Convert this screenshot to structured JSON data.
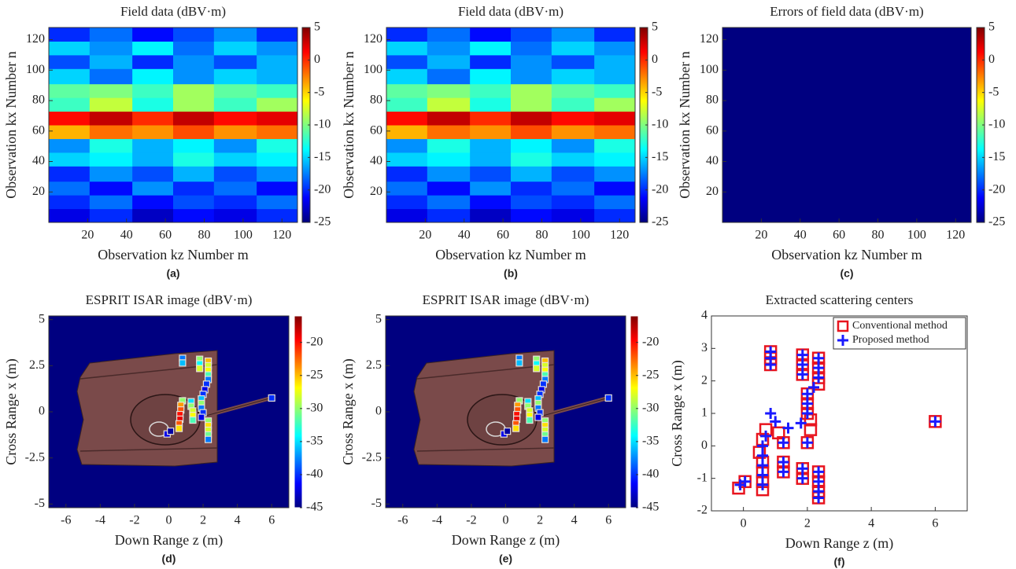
{
  "chart_data": [
    {
      "type": "heatmap",
      "title": "Field data (dBV·m)",
      "xlabel": "Observation kz Number m",
      "ylabel": "Observation kx Number n",
      "label": "(a)",
      "xlim": [
        0,
        128
      ],
      "ylim": [
        0,
        128
      ],
      "xticks": [
        20,
        40,
        60,
        80,
        100,
        120
      ],
      "yticks": [
        20,
        40,
        60,
        80,
        100,
        120
      ],
      "clim": [
        -25,
        5
      ],
      "cticks": [
        5,
        0,
        -5,
        -10,
        -15,
        -20,
        -25
      ],
      "xbins": [
        0,
        21,
        43,
        64,
        85,
        107,
        128
      ],
      "ybins": [
        0,
        9,
        18,
        27,
        37,
        46,
        55,
        64,
        73,
        82,
        91,
        101,
        110,
        119,
        128
      ],
      "z": [
        [
          -22,
          -20,
          -23,
          -21,
          -22,
          -20
        ],
        [
          -20,
          -18,
          -21,
          -19,
          -20,
          -18
        ],
        [
          -18,
          -21,
          -17,
          -20,
          -18,
          -21
        ],
        [
          -20,
          -17,
          -19,
          -16,
          -19,
          -17
        ],
        [
          -15,
          -14,
          -16,
          -13,
          -15,
          -14
        ],
        [
          -17,
          -13,
          -16,
          -14,
          -17,
          -13
        ],
        [
          -4,
          -2,
          -3,
          -1,
          -3,
          -2
        ],
        [
          1,
          3,
          0,
          3,
          1,
          2
        ],
        [
          -12,
          -8,
          -13,
          -9,
          -12,
          -9
        ],
        [
          -11,
          -10,
          -12,
          -9,
          -11,
          -12
        ],
        [
          -15,
          -18,
          -14,
          -17,
          -15,
          -16
        ],
        [
          -19,
          -16,
          -20,
          -17,
          -19,
          -16
        ],
        [
          -15,
          -17,
          -14,
          -18,
          -15,
          -17
        ],
        [
          -20,
          -18,
          -21,
          -19,
          -17,
          -20
        ]
      ]
    },
    {
      "type": "heatmap",
      "title": "Field data (dBV·m)",
      "xlabel": "Observation kz Number m",
      "ylabel": "Observation kx Number n",
      "label": "(b)",
      "xlim": [
        0,
        128
      ],
      "ylim": [
        0,
        128
      ],
      "xticks": [
        20,
        40,
        60,
        80,
        100,
        120
      ],
      "yticks": [
        20,
        40,
        60,
        80,
        100,
        120
      ],
      "clim": [
        -25,
        5
      ],
      "cticks": [
        5,
        0,
        -5,
        -10,
        -15,
        -20,
        -25
      ],
      "xbins": [
        0,
        21,
        43,
        64,
        85,
        107,
        128
      ],
      "ybins": [
        0,
        9,
        18,
        27,
        37,
        46,
        55,
        64,
        73,
        82,
        91,
        101,
        110,
        119,
        128
      ],
      "z": [
        [
          -22,
          -20,
          -23,
          -21,
          -22,
          -20
        ],
        [
          -20,
          -18,
          -21,
          -19,
          -20,
          -18
        ],
        [
          -18,
          -21,
          -17,
          -20,
          -18,
          -21
        ],
        [
          -20,
          -17,
          -19,
          -16,
          -19,
          -17
        ],
        [
          -15,
          -14,
          -16,
          -13,
          -15,
          -14
        ],
        [
          -17,
          -13,
          -16,
          -14,
          -17,
          -13
        ],
        [
          -4,
          -2,
          -3,
          -1,
          -3,
          -2
        ],
        [
          1,
          3,
          0,
          3,
          1,
          2
        ],
        [
          -12,
          -8,
          -13,
          -9,
          -12,
          -9
        ],
        [
          -11,
          -10,
          -12,
          -9,
          -11,
          -12
        ],
        [
          -15,
          -18,
          -14,
          -17,
          -15,
          -16
        ],
        [
          -19,
          -16,
          -20,
          -17,
          -19,
          -16
        ],
        [
          -15,
          -17,
          -14,
          -18,
          -15,
          -17
        ],
        [
          -20,
          -18,
          -21,
          -19,
          -17,
          -20
        ]
      ]
    },
    {
      "type": "heatmap",
      "title": "Errors of field data (dBV·m)",
      "xlabel": "Observation kz Number m",
      "ylabel": "Observation kx Number n",
      "label": "(c)",
      "xlim": [
        0,
        128
      ],
      "ylim": [
        0,
        128
      ],
      "xticks": [
        20,
        40,
        60,
        80,
        100,
        120
      ],
      "yticks": [
        20,
        40,
        60,
        80,
        100,
        120
      ],
      "clim": [
        -25,
        5
      ],
      "cticks": [
        5,
        0,
        -5,
        -10,
        -15,
        -20,
        -25
      ],
      "xbins": [
        0,
        128
      ],
      "ybins": [
        0,
        128
      ],
      "z": [
        [
          -25
        ]
      ]
    },
    {
      "type": "isar",
      "title": "ESPRIT ISAR image (dBV·m)",
      "xlabel": "Down Range z (m)",
      "ylabel": "Cross Range x (m)",
      "label": "(d)",
      "xlim": [
        -7,
        7
      ],
      "ylim": [
        -5.2,
        5.2
      ],
      "xticks": [
        -6,
        -4,
        -2,
        0,
        2,
        4,
        6
      ],
      "yticks": [
        -5,
        -2.5,
        0,
        2.5,
        5
      ],
      "clim": [
        -45,
        -16
      ],
      "cticks": [
        -20,
        -25,
        -30,
        -35,
        -40,
        -45
      ],
      "x": [
        0.8,
        0.8,
        1.8,
        1.8,
        1.8,
        2.3,
        2.3,
        2.3,
        2.3,
        2.3,
        2.2,
        2.1,
        2.0,
        1.9,
        1.9,
        1.9,
        2.0,
        1.9,
        0.8,
        0.7,
        0.7,
        0.65,
        0.65,
        0.6,
        0.6,
        1.3,
        1.3,
        1.4,
        1.4,
        1.4,
        2.3,
        2.3,
        2.3,
        2.3,
        2.3,
        -0.1,
        0.1,
        6.0
      ],
      "y": [
        2.9,
        2.65,
        2.85,
        2.6,
        2.35,
        2.75,
        2.5,
        2.25,
        2.0,
        1.75,
        1.5,
        1.2,
        0.95,
        0.7,
        0.45,
        0.2,
        -0.05,
        -0.3,
        0.6,
        0.35,
        0.1,
        -0.15,
        -0.4,
        -0.65,
        -0.9,
        0.55,
        0.3,
        0.05,
        -0.2,
        -0.45,
        -0.5,
        -0.75,
        -1.0,
        -1.25,
        -1.5,
        -1.2,
        -1.05,
        0.75
      ],
      "values": [
        -38,
        -36,
        -30,
        -34,
        -28,
        -25,
        -28,
        -27,
        -32,
        -38,
        -40,
        -42,
        -40,
        -36,
        -30,
        -38,
        -40,
        -42,
        -30,
        -24,
        -22,
        -20,
        -19,
        -22,
        -26,
        -35,
        -30,
        -28,
        -27,
        -32,
        -30,
        -26,
        -28,
        -31,
        -38,
        -42,
        -44,
        -40
      ]
    },
    {
      "type": "isar",
      "title": "ESPRIT ISAR image (dBV·m)",
      "xlabel": "Down Range z (m)",
      "ylabel": "Cross Range x (m)",
      "label": "(e)",
      "xlim": [
        -7,
        7
      ],
      "ylim": [
        -5.2,
        5.2
      ],
      "xticks": [
        -6,
        -4,
        -2,
        0,
        2,
        4,
        6
      ],
      "yticks": [
        -5,
        -2.5,
        0,
        2.5,
        5
      ],
      "clim": [
        -45,
        -16
      ],
      "cticks": [
        -20,
        -25,
        -30,
        -35,
        -40,
        -45
      ],
      "x": [
        0.8,
        0.8,
        1.8,
        1.8,
        1.8,
        2.3,
        2.3,
        2.3,
        2.3,
        2.3,
        2.2,
        2.1,
        2.0,
        1.9,
        1.9,
        1.9,
        2.0,
        1.9,
        0.8,
        0.7,
        0.7,
        0.65,
        0.65,
        0.6,
        0.6,
        1.3,
        1.3,
        1.4,
        1.4,
        1.4,
        2.3,
        2.3,
        2.3,
        2.3,
        2.3,
        -0.1,
        0.1,
        6.0
      ],
      "y": [
        2.9,
        2.65,
        2.85,
        2.6,
        2.35,
        2.75,
        2.5,
        2.25,
        2.0,
        1.75,
        1.5,
        1.2,
        0.95,
        0.7,
        0.45,
        0.2,
        -0.05,
        -0.3,
        0.6,
        0.35,
        0.1,
        -0.15,
        -0.4,
        -0.65,
        -0.9,
        0.55,
        0.3,
        0.05,
        -0.2,
        -0.45,
        -0.5,
        -0.75,
        -1.0,
        -1.25,
        -1.5,
        -1.2,
        -1.05,
        0.75
      ],
      "values": [
        -38,
        -36,
        -30,
        -34,
        -28,
        -25,
        -28,
        -27,
        -32,
        -38,
        -40,
        -42,
        -40,
        -36,
        -30,
        -38,
        -40,
        -42,
        -30,
        -24,
        -22,
        -20,
        -19,
        -22,
        -26,
        -35,
        -30,
        -28,
        -27,
        -32,
        -30,
        -26,
        -28,
        -31,
        -38,
        -42,
        -44,
        -40
      ]
    },
    {
      "type": "scatter",
      "title": "Extracted scattering centers",
      "xlabel": "Down Range z (m)",
      "ylabel": "Cross Range x (m)",
      "label": "(f)",
      "xlim": [
        -1,
        7
      ],
      "ylim": [
        -2,
        4
      ],
      "xticks": [
        0,
        2,
        4,
        6
      ],
      "yticks": [
        -2,
        -1,
        0,
        1,
        2,
        3,
        4
      ],
      "legend": "upper right",
      "series": [
        {
          "name": "Conventional method",
          "color": "#e8141e",
          "marker": "square",
          "x": [
            0.85,
            0.85,
            0.85,
            1.85,
            1.85,
            1.85,
            2.35,
            2.35,
            2.35,
            2.35,
            2.0,
            2.0,
            2.0,
            2.1,
            2.1,
            2.0,
            0.7,
            0.6,
            0.5,
            0.6,
            0.6,
            0.6,
            0.6,
            1.1,
            1.25,
            1.25,
            1.25,
            1.85,
            1.85,
            2.35,
            2.35,
            2.35,
            2.35,
            -0.15,
            0.05,
            6.0
          ],
          "y": [
            2.9,
            2.7,
            2.5,
            2.8,
            2.5,
            2.2,
            2.7,
            2.4,
            2.1,
            1.9,
            1.6,
            1.3,
            1.0,
            0.8,
            0.5,
            0.1,
            0.5,
            0.2,
            -0.2,
            -0.5,
            -0.8,
            -1.1,
            -1.35,
            0.4,
            0.1,
            -0.5,
            -0.8,
            -0.7,
            -1.0,
            -0.8,
            -1.1,
            -1.4,
            -1.6,
            -1.3,
            -1.1,
            0.75
          ]
        },
        {
          "name": "Proposed method",
          "color": "#1a1aff",
          "marker": "plus",
          "x": [
            0.85,
            0.85,
            0.85,
            1.85,
            1.85,
            1.85,
            2.35,
            2.35,
            2.35,
            2.2,
            2.0,
            2.0,
            2.0,
            2.0,
            1.8,
            0.85,
            1.0,
            1.4,
            0.7,
            0.6,
            0.6,
            0.6,
            0.6,
            0.6,
            1.25,
            1.25,
            1.25,
            1.85,
            1.85,
            2.35,
            2.35,
            2.35,
            2.35,
            -0.1,
            0.05,
            6.0
          ],
          "y": [
            2.9,
            2.7,
            2.5,
            2.8,
            2.5,
            2.2,
            2.7,
            2.4,
            2.1,
            1.8,
            1.6,
            1.3,
            1.0,
            0.1,
            0.7,
            1.0,
            0.75,
            0.55,
            0.3,
            0.0,
            -0.3,
            -0.6,
            -0.9,
            -1.2,
            0.1,
            -0.5,
            -0.8,
            -0.7,
            -1.0,
            -0.8,
            -1.1,
            -1.4,
            -1.6,
            -1.2,
            -1.1,
            0.75
          ]
        }
      ]
    }
  ]
}
